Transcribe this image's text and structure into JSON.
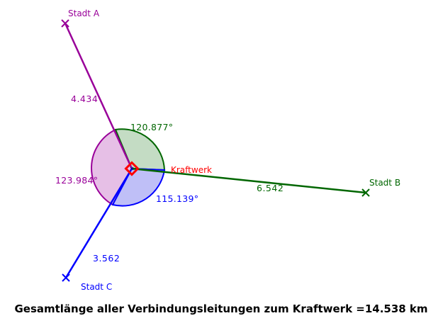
{
  "points": {
    "a": {
      "label": "Stadt A"
    },
    "b": {
      "label": "Stadt B"
    },
    "c": {
      "label": "Stadt C"
    },
    "k": {
      "label": "Kraftwerk"
    }
  },
  "segments": {
    "ka": {
      "length": "4.434"
    },
    "kb": {
      "length": "6.542"
    },
    "kc": {
      "length": "3.562"
    }
  },
  "angles": {
    "ab": {
      "value": "120.877°"
    },
    "bc": {
      "value": "115.139°"
    },
    "ca": {
      "value": "123.984°"
    }
  },
  "caption": "Gesamtlänge aller Verbindungsleitungen zum Kraftwerk =14.538 km",
  "colors": {
    "a": "#990099",
    "b": "#006600",
    "c": "#0000ff",
    "k": "#ff0000"
  }
}
